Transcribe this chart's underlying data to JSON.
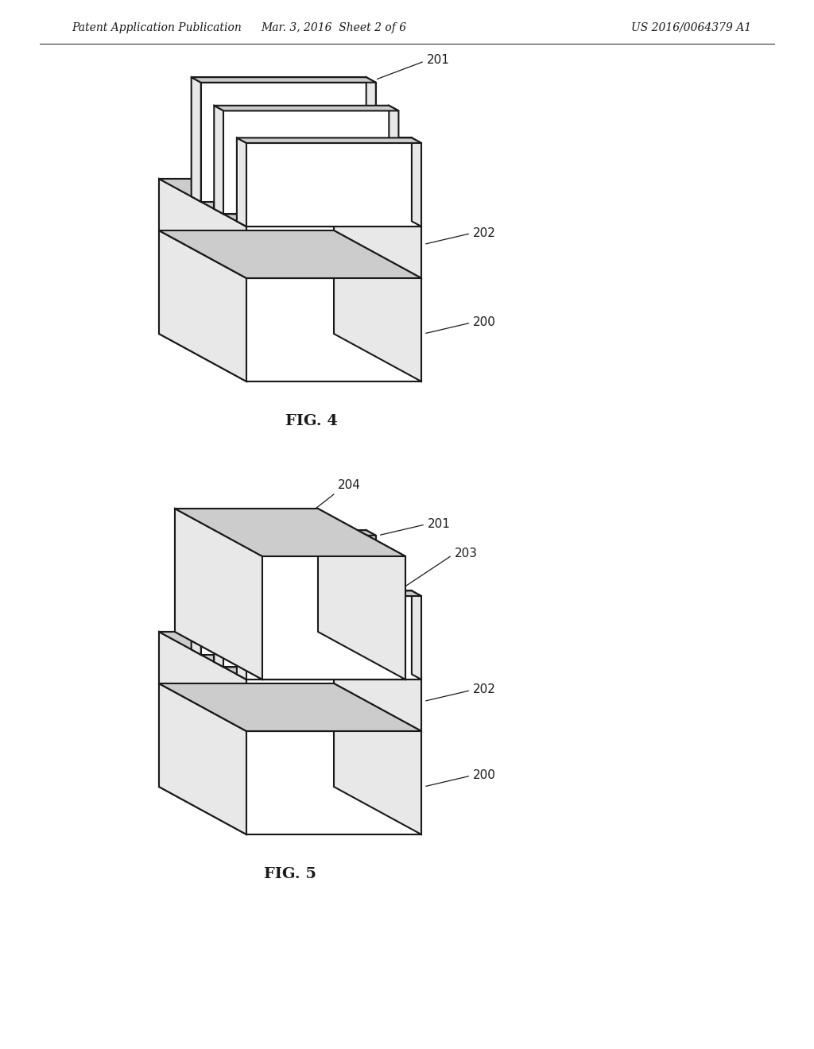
{
  "background_color": "#ffffff",
  "line_color": "#1a1a1a",
  "fill_white": "#ffffff",
  "fill_light": "#e8e8e8",
  "fill_dark": "#cccccc",
  "header_left": "Patent Application Publication",
  "header_mid": "Mar. 3, 2016  Sheet 2 of 6",
  "header_right": "US 2016/0064379 A1",
  "fig4_label": "FIG. 4",
  "fig5_label": "FIG. 5",
  "lw": 1.5
}
